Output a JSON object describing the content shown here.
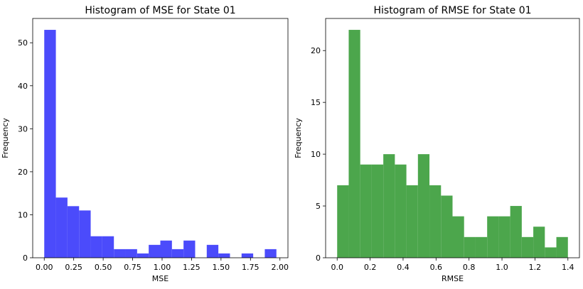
{
  "chart_data": [
    {
      "type": "bar",
      "title": "Histogram of MSE for State 01",
      "xlabel": "MSE",
      "ylabel": "Frequency",
      "color": "#4b4bfb",
      "bin_start": 0.0,
      "bin_width": 0.0985,
      "values": [
        53,
        14,
        12,
        11,
        5,
        5,
        2,
        2,
        1,
        3,
        4,
        2,
        4,
        0,
        3,
        1,
        0,
        1,
        0,
        2
      ],
      "xlim": [
        -0.098,
        2.068
      ],
      "ylim": [
        0,
        55.65
      ],
      "xticks": [
        0.0,
        0.25,
        0.5,
        0.75,
        1.0,
        1.25,
        1.5,
        1.75,
        2.0
      ],
      "xtick_labels": [
        "0.00",
        "0.25",
        "0.50",
        "0.75",
        "1.00",
        "1.25",
        "1.50",
        "1.75",
        "2.00"
      ],
      "yticks": [
        0,
        10,
        20,
        30,
        40,
        50
      ],
      "ytick_labels": [
        "0",
        "10",
        "20",
        "30",
        "40",
        "50"
      ]
    },
    {
      "type": "bar",
      "title": "Histogram of RMSE for State 01",
      "xlabel": "RMSE",
      "ylabel": "Frequency",
      "color": "#4ca64c",
      "bin_start": 0.0,
      "bin_width": 0.07,
      "values": [
        7,
        22,
        9,
        9,
        10,
        9,
        7,
        10,
        7,
        6,
        4,
        2,
        2,
        4,
        4,
        5,
        2,
        3,
        1,
        2
      ],
      "xlim": [
        -0.07,
        1.47
      ],
      "ylim": [
        0,
        23.1
      ],
      "xticks": [
        0.0,
        0.2,
        0.4,
        0.6,
        0.8,
        1.0,
        1.2,
        1.4
      ],
      "xtick_labels": [
        "0.0",
        "0.2",
        "0.4",
        "0.6",
        "0.8",
        "1.0",
        "1.2",
        "1.4"
      ],
      "yticks": [
        0,
        5,
        10,
        15,
        20
      ],
      "ytick_labels": [
        "0",
        "5",
        "10",
        "15",
        "20"
      ]
    }
  ]
}
